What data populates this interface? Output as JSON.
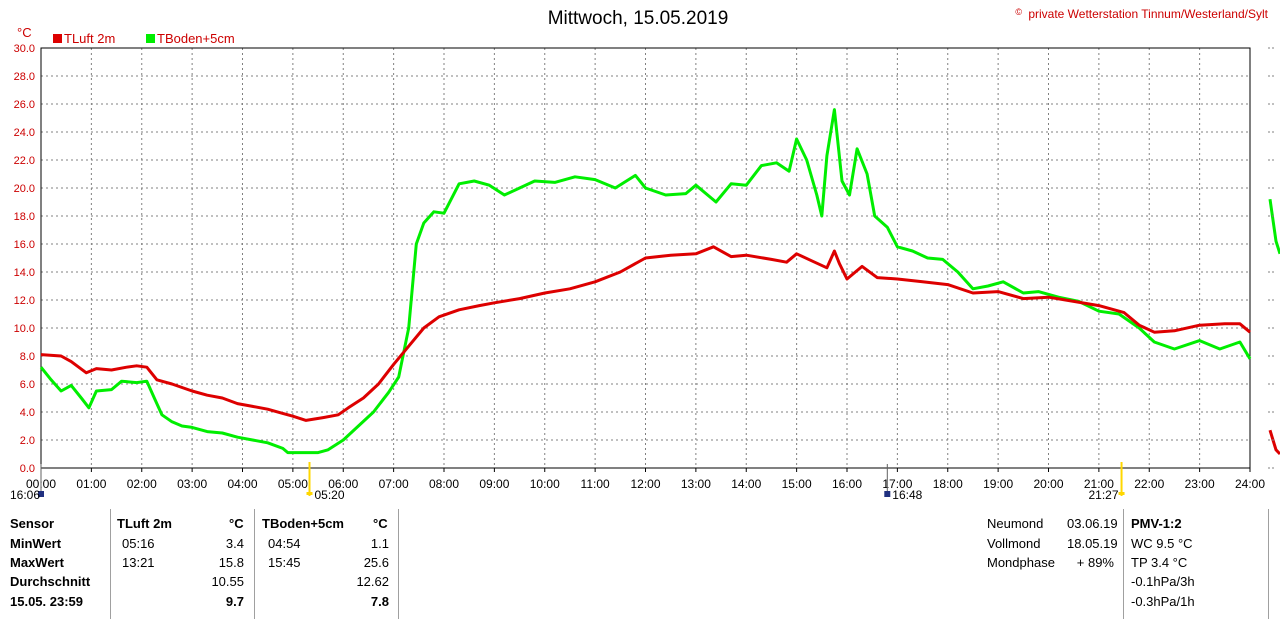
{
  "header": {
    "title": "Mittwoch, 15.05.2019",
    "copyright_symbol": "©",
    "copyright": "private Wetterstation Tinnum/Westerland/Sylt"
  },
  "chart_data": {
    "type": "line",
    "y_unit": "°C",
    "ylim": [
      0,
      30
    ],
    "yticks": [
      "0.0",
      "2.0",
      "4.0",
      "6.0",
      "8.0",
      "10.0",
      "12.0",
      "14.0",
      "16.0",
      "18.0",
      "20.0",
      "22.0",
      "24.0",
      "26.0",
      "28.0",
      "30.0"
    ],
    "xticks": [
      "00:00",
      "01:00",
      "02:00",
      "03:00",
      "04:00",
      "05:00",
      "06:00",
      "07:00",
      "08:00",
      "09:00",
      "10:00",
      "11:00",
      "12:00",
      "13:00",
      "14:00",
      "15:00",
      "16:00",
      "17:00",
      "18:00",
      "19:00",
      "20:00",
      "21:00",
      "22:00",
      "23:00",
      "24:00"
    ],
    "xlim_hours": [
      0,
      24
    ],
    "grid": true,
    "legend_position": "top-left",
    "colors": {
      "tluft": "#dd0000",
      "tboden": "#00ee00",
      "grid": "#808080"
    },
    "series": [
      {
        "name": "TLuft 2m",
        "color": "#dd0000",
        "points": [
          [
            0.0,
            8.1
          ],
          [
            0.4,
            8.0
          ],
          [
            0.6,
            7.6
          ],
          [
            0.9,
            6.8
          ],
          [
            1.1,
            7.1
          ],
          [
            1.4,
            7.0
          ],
          [
            1.7,
            7.2
          ],
          [
            1.9,
            7.3
          ],
          [
            2.1,
            7.2
          ],
          [
            2.3,
            6.3
          ],
          [
            2.6,
            6.0
          ],
          [
            3.0,
            5.5
          ],
          [
            3.3,
            5.2
          ],
          [
            3.6,
            5.0
          ],
          [
            3.9,
            4.6
          ],
          [
            4.2,
            4.4
          ],
          [
            4.5,
            4.2
          ],
          [
            4.8,
            3.9
          ],
          [
            5.0,
            3.7
          ],
          [
            5.26,
            3.4
          ],
          [
            5.6,
            3.6
          ],
          [
            5.9,
            3.8
          ],
          [
            6.1,
            4.3
          ],
          [
            6.4,
            5.0
          ],
          [
            6.7,
            6.0
          ],
          [
            7.0,
            7.4
          ],
          [
            7.3,
            8.7
          ],
          [
            7.6,
            10.0
          ],
          [
            7.9,
            10.8
          ],
          [
            8.3,
            11.3
          ],
          [
            8.7,
            11.6
          ],
          [
            9.0,
            11.8
          ],
          [
            9.5,
            12.1
          ],
          [
            10.0,
            12.5
          ],
          [
            10.5,
            12.8
          ],
          [
            11.0,
            13.3
          ],
          [
            11.5,
            14.0
          ],
          [
            12.0,
            15.0
          ],
          [
            12.5,
            15.2
          ],
          [
            13.0,
            15.3
          ],
          [
            13.35,
            15.8
          ],
          [
            13.7,
            15.1
          ],
          [
            14.0,
            15.2
          ],
          [
            14.5,
            14.9
          ],
          [
            14.8,
            14.7
          ],
          [
            15.0,
            15.3
          ],
          [
            15.3,
            14.8
          ],
          [
            15.6,
            14.3
          ],
          [
            15.75,
            15.5
          ],
          [
            15.85,
            14.6
          ],
          [
            16.0,
            13.5
          ],
          [
            16.3,
            14.4
          ],
          [
            16.6,
            13.6
          ],
          [
            17.0,
            13.5
          ],
          [
            17.5,
            13.3
          ],
          [
            18.0,
            13.1
          ],
          [
            18.5,
            12.5
          ],
          [
            19.0,
            12.6
          ],
          [
            19.5,
            12.1
          ],
          [
            20.0,
            12.2
          ],
          [
            20.5,
            11.9
          ],
          [
            21.0,
            11.6
          ],
          [
            21.5,
            11.1
          ],
          [
            21.8,
            10.2
          ],
          [
            22.1,
            9.7
          ],
          [
            22.5,
            9.8
          ],
          [
            23.0,
            10.2
          ],
          [
            23.5,
            10.3
          ],
          [
            23.8,
            10.3
          ],
          [
            24.0,
            9.7
          ]
        ]
      },
      {
        "name": "TBoden+5cm",
        "color": "#00ee00",
        "points": [
          [
            0.0,
            7.2
          ],
          [
            0.2,
            6.3
          ],
          [
            0.4,
            5.5
          ],
          [
            0.6,
            5.9
          ],
          [
            0.8,
            5.0
          ],
          [
            0.95,
            4.3
          ],
          [
            1.1,
            5.5
          ],
          [
            1.4,
            5.6
          ],
          [
            1.6,
            6.2
          ],
          [
            1.9,
            6.1
          ],
          [
            2.1,
            6.2
          ],
          [
            2.25,
            5.0
          ],
          [
            2.4,
            3.8
          ],
          [
            2.6,
            3.3
          ],
          [
            2.8,
            3.0
          ],
          [
            3.0,
            2.9
          ],
          [
            3.3,
            2.6
          ],
          [
            3.6,
            2.5
          ],
          [
            3.9,
            2.2
          ],
          [
            4.2,
            2.0
          ],
          [
            4.5,
            1.8
          ],
          [
            4.8,
            1.4
          ],
          [
            4.9,
            1.1
          ],
          [
            5.5,
            1.1
          ],
          [
            5.7,
            1.3
          ],
          [
            6.0,
            2.0
          ],
          [
            6.3,
            3.0
          ],
          [
            6.6,
            4.0
          ],
          [
            6.9,
            5.4
          ],
          [
            7.1,
            6.5
          ],
          [
            7.3,
            10.0
          ],
          [
            7.45,
            16.0
          ],
          [
            7.6,
            17.5
          ],
          [
            7.8,
            18.3
          ],
          [
            8.0,
            18.2
          ],
          [
            8.3,
            20.3
          ],
          [
            8.6,
            20.5
          ],
          [
            8.9,
            20.2
          ],
          [
            9.2,
            19.5
          ],
          [
            9.5,
            20.0
          ],
          [
            9.8,
            20.5
          ],
          [
            10.2,
            20.4
          ],
          [
            10.6,
            20.8
          ],
          [
            11.0,
            20.6
          ],
          [
            11.4,
            20.0
          ],
          [
            11.8,
            20.9
          ],
          [
            12.0,
            20.0
          ],
          [
            12.4,
            19.5
          ],
          [
            12.8,
            19.6
          ],
          [
            13.0,
            20.2
          ],
          [
            13.4,
            19.0
          ],
          [
            13.7,
            20.3
          ],
          [
            14.0,
            20.2
          ],
          [
            14.3,
            21.6
          ],
          [
            14.6,
            21.8
          ],
          [
            14.85,
            21.2
          ],
          [
            15.0,
            23.5
          ],
          [
            15.2,
            22.0
          ],
          [
            15.4,
            19.5
          ],
          [
            15.5,
            18.0
          ],
          [
            15.6,
            22.3
          ],
          [
            15.75,
            25.6
          ],
          [
            15.9,
            20.5
          ],
          [
            16.05,
            19.5
          ],
          [
            16.2,
            22.8
          ],
          [
            16.4,
            21.0
          ],
          [
            16.55,
            18.0
          ],
          [
            16.8,
            17.2
          ],
          [
            17.0,
            15.8
          ],
          [
            17.3,
            15.5
          ],
          [
            17.6,
            15.0
          ],
          [
            17.9,
            14.9
          ],
          [
            18.2,
            14.0
          ],
          [
            18.5,
            12.8
          ],
          [
            18.8,
            13.0
          ],
          [
            19.1,
            13.3
          ],
          [
            19.5,
            12.5
          ],
          [
            19.8,
            12.6
          ],
          [
            20.2,
            12.2
          ],
          [
            20.6,
            11.9
          ],
          [
            21.0,
            11.2
          ],
          [
            21.4,
            11.0
          ],
          [
            21.8,
            10.0
          ],
          [
            22.1,
            9.0
          ],
          [
            22.5,
            8.5
          ],
          [
            23.0,
            9.1
          ],
          [
            23.4,
            8.5
          ],
          [
            23.8,
            9.0
          ],
          [
            24.0,
            7.8
          ]
        ]
      }
    ],
    "right_stub": {
      "tboden": [
        [
          0,
          19.2
        ],
        [
          0.6,
          16.2
        ],
        [
          1.0,
          15.3
        ]
      ],
      "tluft": [
        [
          0,
          2.7
        ],
        [
          0.6,
          1.3
        ],
        [
          1.0,
          1.0
        ]
      ]
    },
    "astro": [
      {
        "label": "16:06",
        "hour": 0.0,
        "kind": "moonset"
      },
      {
        "label": "05:20",
        "hour": 5.33,
        "kind": "sunrise"
      },
      {
        "label": "16:48",
        "hour": 16.8,
        "kind": "moonrise"
      },
      {
        "label": "21:27",
        "hour": 21.45,
        "kind": "sunset"
      }
    ]
  },
  "stats": {
    "headers": {
      "sensor": "Sensor",
      "tluft": "TLuft 2m",
      "tboden": "TBoden+5cm",
      "unit": "°C"
    },
    "rows": [
      {
        "label": "MinWert",
        "tluft_time": "05:16",
        "tluft_val": "3.4",
        "tboden_time": "04:54",
        "tboden_val": "1.1"
      },
      {
        "label": "MaxWert",
        "tluft_time": "13:21",
        "tluft_val": "15.8",
        "tboden_time": "15:45",
        "tboden_val": "25.6"
      },
      {
        "label": "Durchschnitt",
        "tluft_time": "",
        "tluft_val": "10.55",
        "tboden_time": "",
        "tboden_val": "12.62"
      },
      {
        "label": "15.05. 23:59",
        "tluft_time": "",
        "tluft_val": "9.7",
        "tboden_time": "",
        "tboden_val": "7.8"
      }
    ],
    "moon": [
      {
        "label": "Neumond",
        "value": "03.06.19"
      },
      {
        "label": "Vollmond",
        "value": "18.05.19"
      },
      {
        "label": "Mondphase",
        "value": "+ 89%"
      }
    ],
    "pmv": {
      "title": "PMV-1:2",
      "lines": [
        "WC 9.5 °C",
        "TP 3.4 °C",
        "-0.1hPa/3h",
        "-0.3hPa/1h"
      ]
    }
  }
}
